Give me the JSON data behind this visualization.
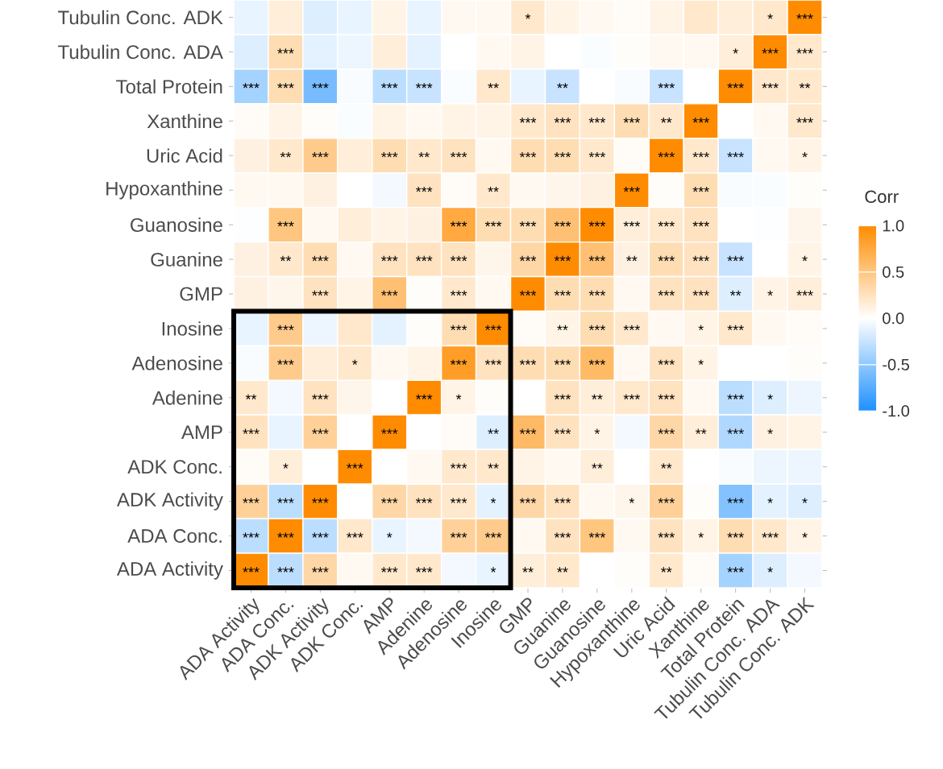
{
  "chart_data": {
    "type": "heatmap",
    "categories": [
      "ADA Activity",
      "ADA Conc.",
      "ADK Activity",
      "ADK Conc.",
      "AMP",
      "Adenine",
      "Adenosine",
      "Inosine",
      "GMP",
      "Guanine",
      "Guanosine",
      "Hypoxanthine",
      "Uric Acid",
      "Xanthine",
      "Total Protein",
      "Tubulin Conc. ADA",
      "Tubulin Conc. ADK"
    ],
    "y_categories": [
      "Tubulin Conc. ADK",
      "Tubulin Conc. ADA",
      "Total Protein",
      "Xanthine",
      "Uric Acid",
      "Hypoxanthine",
      "Guanosine",
      "Guanine",
      "GMP",
      "Inosine",
      "Adenosine",
      "Adenine",
      "AMP",
      "ADK Conc.",
      "ADK Activity",
      "ADA Conc.",
      "ADA Activity"
    ],
    "cells": [
      [
        -0.1,
        0.15,
        -0.15,
        -0.1,
        0.1,
        -0.1,
        0.05,
        0.05,
        0.2,
        0.1,
        0.05,
        0.03,
        0.1,
        0.2,
        0.15,
        0.2,
        1
      ],
      [
        -0.15,
        0.3,
        -0.12,
        -0.08,
        0.15,
        -0.12,
        0,
        0.05,
        0.1,
        0,
        -0.02,
        0.02,
        0.05,
        0.05,
        0.15,
        1,
        0.2
      ],
      [
        -0.4,
        0.3,
        -0.6,
        -0.03,
        -0.3,
        -0.25,
        -0.02,
        0.2,
        -0.1,
        -0.25,
        0,
        -0.03,
        -0.25,
        0,
        1,
        0.2,
        0.2
      ],
      [
        0.03,
        0.1,
        0.02,
        -0.02,
        0.1,
        0.05,
        0.1,
        0.1,
        0.2,
        0.25,
        0.2,
        0.3,
        0.2,
        1,
        0,
        0.05,
        0.2
      ],
      [
        0.12,
        0.2,
        0.45,
        0.15,
        0.3,
        0.2,
        0.25,
        0.05,
        0.3,
        0.3,
        0.2,
        0.03,
        1,
        0.2,
        -0.25,
        0.05,
        0.1
      ],
      [
        0.05,
        0.05,
        0.12,
        0,
        -0.05,
        0.25,
        0.03,
        0.2,
        0.05,
        0.08,
        0.12,
        1,
        0.02,
        0.3,
        -0.03,
        -0.02,
        0.02
      ],
      [
        -0.01,
        0.5,
        0.05,
        0.15,
        0.1,
        0.12,
        0.75,
        0.3,
        0.3,
        0.55,
        1,
        0.15,
        0.2,
        0.25,
        0,
        -0.01,
        0.08
      ],
      [
        0.12,
        0.2,
        0.3,
        0.05,
        0.25,
        0.25,
        0.25,
        0.08,
        0.35,
        1,
        0.55,
        0.12,
        0.3,
        0.25,
        -0.25,
        0,
        0.1
      ],
      [
        0.12,
        0.08,
        0.25,
        0.1,
        0.55,
        0.02,
        0.2,
        0.05,
        1,
        0.3,
        0.3,
        0.05,
        0.25,
        0.25,
        -0.15,
        0.1,
        0.15
      ],
      [
        -0.1,
        0.45,
        -0.08,
        0.2,
        -0.12,
        0.02,
        0.3,
        1,
        0.03,
        0.1,
        0.3,
        0.2,
        0.05,
        0.1,
        0.2,
        0.05,
        0.03
      ],
      [
        -0.03,
        0.45,
        0.15,
        0.2,
        0.05,
        0.1,
        0.85,
        0.25,
        0.3,
        0.3,
        0.6,
        0.05,
        0.25,
        0.1,
        0,
        0,
        0.02
      ],
      [
        0.2,
        -0.05,
        0.25,
        0.08,
        0,
        1,
        0.1,
        0.02,
        0,
        0.25,
        0.15,
        0.2,
        0.25,
        0.05,
        -0.3,
        -0.15,
        -0.08
      ],
      [
        0.25,
        -0.1,
        0.4,
        0,
        1,
        0,
        0.03,
        -0.15,
        0.6,
        0.25,
        0.1,
        -0.05,
        0.35,
        0.15,
        -0.35,
        0.12,
        0.1
      ],
      [
        0.03,
        0.15,
        0,
        1,
        0,
        0.05,
        0.2,
        0.2,
        0.1,
        0.05,
        0.15,
        0,
        0.2,
        0,
        -0.03,
        -0.08,
        -0.08
      ],
      [
        0.4,
        -0.3,
        1,
        0,
        0.35,
        0.25,
        0.2,
        -0.12,
        0.35,
        0.25,
        0.05,
        0.08,
        0.4,
        0.02,
        -0.55,
        -0.12,
        -0.15
      ],
      [
        -0.3,
        1,
        -0.3,
        0.2,
        -0.1,
        -0.05,
        0.4,
        0.45,
        0.05,
        0.25,
        0.5,
        0.05,
        0.25,
        0.1,
        0.3,
        0.2,
        0.1
      ],
      [
        1,
        -0.3,
        0.35,
        0.05,
        0.2,
        0.2,
        -0.05,
        -0.1,
        0.15,
        0.2,
        0,
        0.02,
        0.2,
        0.03,
        -0.4,
        -0.15,
        -0.05
      ]
    ],
    "cell_labels": [
      [
        null,
        null,
        null,
        null,
        null,
        null,
        null,
        null,
        "*",
        null,
        null,
        null,
        null,
        null,
        null,
        "*",
        "***"
      ],
      [
        null,
        "***",
        null,
        null,
        null,
        null,
        null,
        null,
        null,
        null,
        null,
        null,
        null,
        null,
        "*",
        "***",
        "***"
      ],
      [
        "***",
        "***",
        "***",
        null,
        "***",
        "***",
        null,
        "**",
        null,
        "**",
        null,
        null,
        "***",
        null,
        "***",
        "***",
        "**"
      ],
      [
        null,
        null,
        null,
        null,
        null,
        null,
        null,
        null,
        "***",
        "***",
        "***",
        "***",
        "**",
        "***",
        null,
        null,
        "***"
      ],
      [
        null,
        "**",
        "***",
        null,
        "***",
        "**",
        "***",
        null,
        "***",
        "***",
        "***",
        null,
        "***",
        "***",
        "***",
        null,
        "*"
      ],
      [
        null,
        null,
        null,
        null,
        null,
        "***",
        null,
        "**",
        null,
        null,
        null,
        "***",
        null,
        "***",
        null,
        null,
        null
      ],
      [
        null,
        "***",
        null,
        null,
        null,
        null,
        "***",
        "***",
        "***",
        "***",
        "***",
        "***",
        "***",
        "***",
        null,
        null,
        null
      ],
      [
        null,
        "**",
        "***",
        null,
        "***",
        "***",
        "***",
        null,
        "***",
        "***",
        "***",
        "**",
        "***",
        "***",
        "***",
        null,
        "*"
      ],
      [
        null,
        null,
        "***",
        null,
        "***",
        null,
        "***",
        null,
        "***",
        "***",
        "***",
        null,
        "***",
        "***",
        "**",
        "*",
        "***"
      ],
      [
        null,
        "***",
        null,
        null,
        null,
        null,
        "***",
        "***",
        null,
        "**",
        "***",
        "***",
        null,
        "*",
        "***",
        null,
        null
      ],
      [
        null,
        "***",
        null,
        "*",
        null,
        null,
        "***",
        "***",
        "***",
        "***",
        "***",
        null,
        "***",
        "*",
        null,
        null,
        null
      ],
      [
        "**",
        null,
        "***",
        null,
        null,
        "***",
        "*",
        null,
        null,
        "***",
        "**",
        "***",
        "***",
        null,
        "***",
        "*",
        null
      ],
      [
        "***",
        null,
        "***",
        null,
        "***",
        null,
        null,
        "**",
        "***",
        "***",
        "*",
        null,
        "***",
        "**",
        "***",
        "*",
        null
      ],
      [
        null,
        "*",
        null,
        "***",
        null,
        null,
        "***",
        "**",
        null,
        null,
        "**",
        null,
        "**",
        null,
        null,
        null,
        null
      ],
      [
        "***",
        "***",
        "***",
        null,
        "***",
        "***",
        "***",
        "*",
        "***",
        "***",
        null,
        "*",
        "***",
        null,
        "***",
        "*",
        "*"
      ],
      [
        "***",
        "***",
        "***",
        "***",
        "*",
        null,
        "***",
        "***",
        null,
        "***",
        "***",
        null,
        "***",
        "*",
        "***",
        "***",
        "*"
      ],
      [
        "***",
        "***",
        "***",
        null,
        "***",
        "***",
        null,
        "*",
        "**",
        "**",
        null,
        null,
        "**",
        null,
        "***",
        "*",
        null
      ]
    ],
    "clabel": "Corr",
    "clim": [
      -1,
      1
    ],
    "cticks": [
      {
        "value": -1,
        "label": "-1.0"
      },
      {
        "value": -0.5,
        "label": "-0.5"
      },
      {
        "value": 0,
        "label": "0.0"
      },
      {
        "value": 0.5,
        "label": "0.5"
      },
      {
        "value": 1,
        "label": "1.0"
      }
    ]
  }
}
